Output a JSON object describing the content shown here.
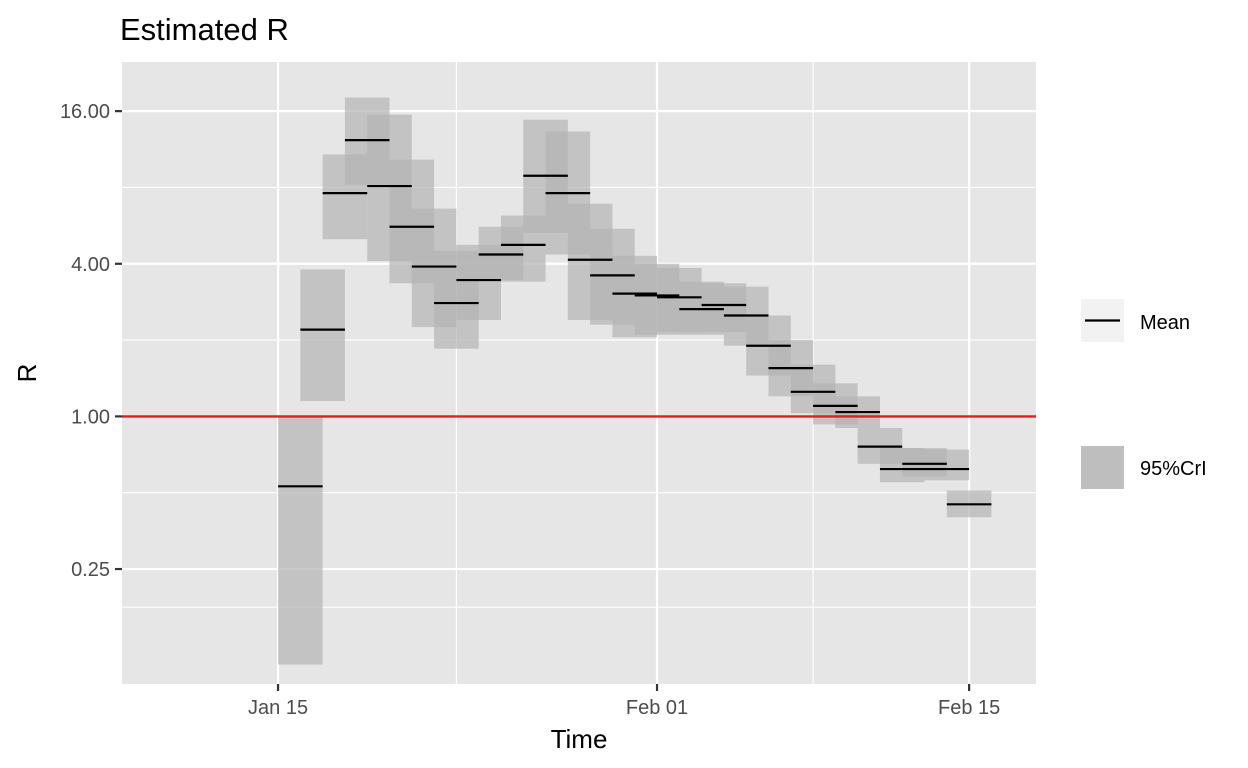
{
  "chart_data": {
    "type": "line",
    "title": "Estimated R",
    "xlabel": "Time",
    "ylabel": "R",
    "y_scale": "log2",
    "ylim": [
      0.088,
      25.0
    ],
    "y_ticks": [
      {
        "value": 0.25,
        "label": "0.25"
      },
      {
        "value": 1.0,
        "label": "1.00"
      },
      {
        "value": 4.0,
        "label": "4.00"
      },
      {
        "value": 16.0,
        "label": "16.00"
      }
    ],
    "xlim": [
      "2020-01-08",
      "2020-02-18"
    ],
    "x_ticks": [
      {
        "value": "2020-01-15",
        "label": "Jan 15"
      },
      {
        "value": "2020-02-01",
        "label": "Feb 01"
      },
      {
        "value": "2020-02-15",
        "label": "Feb 15"
      }
    ],
    "x_minor": [
      "2020-01-23",
      "2020-02-08"
    ],
    "grid": true,
    "reference_line": {
      "value": 1.0,
      "color": "#e41a1c"
    },
    "ribbon_color": "#b3b3b3",
    "mean_color": "#000000",
    "window_days": 2,
    "series": [
      {
        "name": "Mean",
        "legend_label": "Mean",
        "points": [
          {
            "start": "2020-01-15",
            "mean": 0.53,
            "lower": 0.105,
            "upper": 1.0
          },
          {
            "start": "2020-01-16",
            "mean": 2.2,
            "lower": 1.15,
            "upper": 3.8
          },
          {
            "start": "2020-01-17",
            "mean": 7.6,
            "lower": 5.0,
            "upper": 10.8
          },
          {
            "start": "2020-01-18",
            "mean": 12.3,
            "lower": 8.2,
            "upper": 18.1
          },
          {
            "start": "2020-01-19",
            "mean": 8.1,
            "lower": 4.1,
            "upper": 15.5
          },
          {
            "start": "2020-01-20",
            "mean": 5.6,
            "lower": 3.35,
            "upper": 10.3
          },
          {
            "start": "2020-01-21",
            "mean": 3.9,
            "lower": 2.25,
            "upper": 6.6
          },
          {
            "start": "2020-01-22",
            "mean": 2.8,
            "lower": 1.85,
            "upper": 4.5
          },
          {
            "start": "2020-01-23",
            "mean": 3.45,
            "lower": 2.4,
            "upper": 4.75
          },
          {
            "start": "2020-01-24",
            "mean": 4.35,
            "lower": 3.45,
            "upper": 5.6
          },
          {
            "start": "2020-01-25",
            "mean": 4.75,
            "lower": 3.4,
            "upper": 6.2
          },
          {
            "start": "2020-01-26",
            "mean": 8.9,
            "lower": 5.3,
            "upper": 14.8
          },
          {
            "start": "2020-01-27",
            "mean": 7.6,
            "lower": 4.35,
            "upper": 13.3
          },
          {
            "start": "2020-01-28",
            "mean": 4.15,
            "lower": 2.4,
            "upper": 6.9
          },
          {
            "start": "2020-01-29",
            "mean": 3.6,
            "lower": 2.3,
            "upper": 5.5
          },
          {
            "start": "2020-01-30",
            "mean": 3.05,
            "lower": 2.05,
            "upper": 4.3
          },
          {
            "start": "2020-01-31",
            "mean": 3.0,
            "lower": 2.1,
            "upper": 4.0
          },
          {
            "start": "2020-02-01",
            "mean": 2.95,
            "lower": 2.15,
            "upper": 3.85
          },
          {
            "start": "2020-02-02",
            "mean": 2.65,
            "lower": 2.1,
            "upper": 3.4
          },
          {
            "start": "2020-02-03",
            "mean": 2.75,
            "lower": 2.15,
            "upper": 3.35
          },
          {
            "start": "2020-02-04",
            "mean": 2.5,
            "lower": 1.9,
            "upper": 3.25
          },
          {
            "start": "2020-02-05",
            "mean": 1.9,
            "lower": 1.45,
            "upper": 2.5
          },
          {
            "start": "2020-02-06",
            "mean": 1.55,
            "lower": 1.2,
            "upper": 2.0
          },
          {
            "start": "2020-02-07",
            "mean": 1.25,
            "lower": 1.03,
            "upper": 1.6
          },
          {
            "start": "2020-02-08",
            "mean": 1.1,
            "lower": 0.93,
            "upper": 1.35
          },
          {
            "start": "2020-02-09",
            "mean": 1.04,
            "lower": 0.9,
            "upper": 1.2
          },
          {
            "start": "2020-02-10",
            "mean": 0.76,
            "lower": 0.65,
            "upper": 0.9
          },
          {
            "start": "2020-02-11",
            "mean": 0.62,
            "lower": 0.55,
            "upper": 0.75
          },
          {
            "start": "2020-02-12",
            "mean": 0.65,
            "lower": 0.58,
            "upper": 0.75
          },
          {
            "start": "2020-02-13",
            "mean": 0.62,
            "lower": 0.56,
            "upper": 0.74
          },
          {
            "start": "2020-02-14",
            "mean": 0.45,
            "lower": 0.4,
            "upper": 0.51
          }
        ]
      },
      {
        "name": "95%CrI",
        "legend_label": "95%CrI"
      }
    ]
  }
}
